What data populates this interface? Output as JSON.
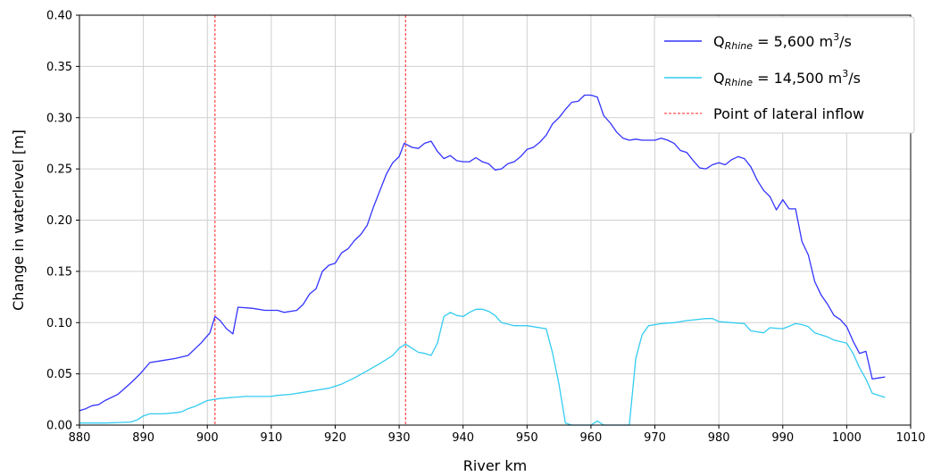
{
  "chart_data": {
    "type": "line",
    "xlabel": "River km",
    "ylabel": "Change in waterlevel [m]",
    "xlim": [
      880,
      1010
    ],
    "ylim": [
      0,
      0.4
    ],
    "xticks": [
      "880",
      "890",
      "900",
      "910",
      "920",
      "930",
      "940",
      "950",
      "960",
      "970",
      "980",
      "990",
      "1000",
      "1010"
    ],
    "yticks": [
      "0.00",
      "0.05",
      "0.10",
      "0.15",
      "0.20",
      "0.25",
      "0.30",
      "0.35",
      "0.40"
    ],
    "grid": true,
    "legend_position": "top-right",
    "series": [
      {
        "legend_parts": {
          "q": "Q",
          "sub": "Rhine",
          "value": " = 5,600 m",
          "sup": "3",
          "unit": "/s"
        },
        "color": "#3333ff",
        "style": "solid",
        "points": [
          [
            880,
            0.014
          ],
          [
            881,
            0.016
          ],
          [
            882,
            0.019
          ],
          [
            883,
            0.02
          ],
          [
            884,
            0.024
          ],
          [
            886,
            0.03
          ],
          [
            888,
            0.041
          ],
          [
            889.5,
            0.05
          ],
          [
            891,
            0.061
          ],
          [
            893,
            0.063
          ],
          [
            895,
            0.065
          ],
          [
            897,
            0.068
          ],
          [
            899,
            0.08
          ],
          [
            900.4,
            0.09
          ],
          [
            901.2,
            0.106
          ],
          [
            902,
            0.102
          ],
          [
            903,
            0.094
          ],
          [
            904,
            0.089
          ],
          [
            904.8,
            0.115
          ],
          [
            907,
            0.114
          ],
          [
            909,
            0.112
          ],
          [
            911,
            0.112
          ],
          [
            912,
            0.11
          ],
          [
            914,
            0.112
          ],
          [
            915,
            0.118
          ],
          [
            916,
            0.128
          ],
          [
            917,
            0.133
          ],
          [
            918,
            0.15
          ],
          [
            919,
            0.156
          ],
          [
            920,
            0.158
          ],
          [
            921,
            0.168
          ],
          [
            922,
            0.172
          ],
          [
            923,
            0.18
          ],
          [
            924,
            0.186
          ],
          [
            925,
            0.195
          ],
          [
            926,
            0.213
          ],
          [
            927,
            0.229
          ],
          [
            928,
            0.245
          ],
          [
            929,
            0.256
          ],
          [
            930,
            0.262
          ],
          [
            930.8,
            0.275
          ],
          [
            932,
            0.271
          ],
          [
            933,
            0.27
          ],
          [
            934,
            0.275
          ],
          [
            935,
            0.277
          ],
          [
            936,
            0.267
          ],
          [
            937,
            0.26
          ],
          [
            938,
            0.263
          ],
          [
            939,
            0.258
          ],
          [
            940,
            0.257
          ],
          [
            941,
            0.257
          ],
          [
            942,
            0.261
          ],
          [
            943,
            0.257
          ],
          [
            944,
            0.255
          ],
          [
            945,
            0.249
          ],
          [
            946,
            0.25
          ],
          [
            947,
            0.255
          ],
          [
            948,
            0.257
          ],
          [
            949,
            0.262
          ],
          [
            950,
            0.269
          ],
          [
            951,
            0.271
          ],
          [
            952,
            0.276
          ],
          [
            953,
            0.283
          ],
          [
            954,
            0.294
          ],
          [
            955,
            0.3
          ],
          [
            956,
            0.308
          ],
          [
            957,
            0.315
          ],
          [
            958,
            0.316
          ],
          [
            959,
            0.322
          ],
          [
            960,
            0.322
          ],
          [
            961,
            0.32
          ],
          [
            962,
            0.302
          ],
          [
            963,
            0.295
          ],
          [
            964,
            0.286
          ],
          [
            965,
            0.28
          ],
          [
            966,
            0.278
          ],
          [
            967,
            0.279
          ],
          [
            968,
            0.278
          ],
          [
            969,
            0.278
          ],
          [
            970,
            0.278
          ],
          [
            971,
            0.28
          ],
          [
            972,
            0.278
          ],
          [
            973,
            0.275
          ],
          [
            974,
            0.268
          ],
          [
            975,
            0.266
          ],
          [
            976,
            0.258
          ],
          [
            977,
            0.251
          ],
          [
            978,
            0.25
          ],
          [
            979,
            0.254
          ],
          [
            980,
            0.256
          ],
          [
            981,
            0.254
          ],
          [
            982,
            0.259
          ],
          [
            983,
            0.262
          ],
          [
            984,
            0.26
          ],
          [
            985,
            0.252
          ],
          [
            986,
            0.239
          ],
          [
            987,
            0.229
          ],
          [
            988,
            0.223
          ],
          [
            989,
            0.21
          ],
          [
            990,
            0.22
          ],
          [
            991,
            0.211
          ],
          [
            992,
            0.211
          ],
          [
            993,
            0.179
          ],
          [
            994,
            0.166
          ],
          [
            995,
            0.14
          ],
          [
            996,
            0.127
          ],
          [
            997,
            0.118
          ],
          [
            998,
            0.107
          ],
          [
            999,
            0.103
          ],
          [
            1000,
            0.096
          ],
          [
            1001,
            0.082
          ],
          [
            1002,
            0.07
          ],
          [
            1003,
            0.072
          ],
          [
            1004,
            0.045
          ],
          [
            1005,
            0.046
          ],
          [
            1006,
            0.047
          ]
        ]
      },
      {
        "legend_parts": {
          "q": "Q",
          "sub": "Rhine",
          "value": " = 14,500 m",
          "sup": "3",
          "unit": "/s"
        },
        "color": "#33ccf0",
        "style": "solid",
        "points": [
          [
            880,
            0.002
          ],
          [
            884,
            0.002
          ],
          [
            888,
            0.003
          ],
          [
            889,
            0.005
          ],
          [
            890,
            0.009
          ],
          [
            891,
            0.011
          ],
          [
            893,
            0.011
          ],
          [
            895,
            0.012
          ],
          [
            896,
            0.013
          ],
          [
            897,
            0.016
          ],
          [
            898,
            0.018
          ],
          [
            899,
            0.021
          ],
          [
            900,
            0.024
          ],
          [
            901,
            0.025
          ],
          [
            902,
            0.026
          ],
          [
            904,
            0.027
          ],
          [
            906,
            0.028
          ],
          [
            910,
            0.028
          ],
          [
            911,
            0.029
          ],
          [
            913,
            0.03
          ],
          [
            915,
            0.032
          ],
          [
            917,
            0.034
          ],
          [
            919,
            0.036
          ],
          [
            921,
            0.04
          ],
          [
            923,
            0.046
          ],
          [
            925,
            0.053
          ],
          [
            927,
            0.06
          ],
          [
            929,
            0.068
          ],
          [
            930,
            0.075
          ],
          [
            931,
            0.079
          ],
          [
            932,
            0.075
          ],
          [
            933,
            0.071
          ],
          [
            934,
            0.07
          ],
          [
            935,
            0.068
          ],
          [
            936,
            0.08
          ],
          [
            937,
            0.106
          ],
          [
            938,
            0.11
          ],
          [
            939,
            0.107
          ],
          [
            940,
            0.106
          ],
          [
            941,
            0.11
          ],
          [
            942,
            0.113
          ],
          [
            943,
            0.113
          ],
          [
            944,
            0.111
          ],
          [
            945,
            0.107
          ],
          [
            946,
            0.1
          ],
          [
            948,
            0.097
          ],
          [
            950,
            0.097
          ],
          [
            953,
            0.094
          ],
          [
            954,
            0.07
          ],
          [
            955,
            0.04
          ],
          [
            956,
            0.002
          ],
          [
            957,
            0.0
          ],
          [
            959,
            0.0
          ],
          [
            960,
            0.0
          ],
          [
            961,
            0.004
          ],
          [
            962,
            0.0
          ],
          [
            963,
            0.0
          ],
          [
            965,
            0.0
          ],
          [
            966,
            0.0
          ],
          [
            967,
            0.065
          ],
          [
            968,
            0.088
          ],
          [
            969,
            0.097
          ],
          [
            971,
            0.099
          ],
          [
            973,
            0.1
          ],
          [
            975,
            0.102
          ],
          [
            978,
            0.104
          ],
          [
            979,
            0.104
          ],
          [
            980,
            0.101
          ],
          [
            982,
            0.1
          ],
          [
            984,
            0.099
          ],
          [
            985,
            0.092
          ],
          [
            987,
            0.09
          ],
          [
            988,
            0.095
          ],
          [
            990,
            0.094
          ],
          [
            992,
            0.099
          ],
          [
            993,
            0.098
          ],
          [
            994,
            0.096
          ],
          [
            995,
            0.09
          ],
          [
            997,
            0.086
          ],
          [
            998,
            0.083
          ],
          [
            1000,
            0.08
          ],
          [
            1001,
            0.07
          ],
          [
            1002,
            0.056
          ],
          [
            1003,
            0.045
          ],
          [
            1004,
            0.031
          ],
          [
            1005,
            0.029
          ],
          [
            1006,
            0.027
          ]
        ]
      }
    ],
    "vlines": {
      "legend": "Point of lateral inflow",
      "color": "#ff2020",
      "style": "dashed",
      "x": [
        901.2,
        931
      ]
    }
  }
}
